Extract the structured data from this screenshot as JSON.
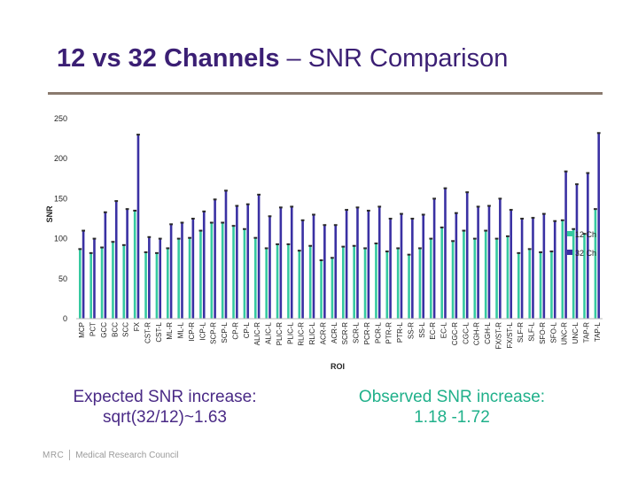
{
  "slide": {
    "title_bold": "12 vs 32 Channels",
    "title_rest": " – SNR Comparison",
    "note_expected_line1": "Expected SNR increase:",
    "note_expected_line2": "sqrt(32/12)~1.63",
    "note_observed_line1": "Observed SNR increase:",
    "note_observed_line2": "1.18 -1.72",
    "footer_mark": "MRC",
    "footer_text": "Medical Research Council"
  },
  "colors": {
    "title": "#3b1f74",
    "series_12ch": "#36c9a0",
    "series_32ch": "#3a31a3",
    "observed_text": "#1fb08a"
  },
  "chart_data": {
    "type": "bar",
    "xlabel": "ROI",
    "ylabel": "SNR",
    "ylim": [
      0,
      250
    ],
    "yticks": [
      0,
      50,
      100,
      150,
      200,
      250
    ],
    "grid": false,
    "legend_position": "right",
    "categories": [
      "MCP",
      "PCT",
      "GCC",
      "BCC",
      "SCC",
      "FX",
      "CST-R",
      "CST-L",
      "ML-R",
      "ML-L",
      "ICP-R",
      "ICP-L",
      "SCP-R",
      "SCP-L",
      "CP-R",
      "CP-L",
      "ALIC-R",
      "ALIC-L",
      "PLIC-R",
      "PLIC-L",
      "RLIC-R",
      "RLIC-L",
      "ACR-R",
      "ACR-L",
      "SCR-R",
      "SCR-L",
      "PCR-R",
      "PCR-L",
      "PTR-R",
      "PTR-L",
      "SS-R",
      "SS-L",
      "EC-R",
      "EC-L",
      "CGC-R",
      "CGC-L",
      "CGH-R",
      "CGH-L",
      "FX/ST-R",
      "FX/ST-L",
      "SLF-R",
      "SLF-L",
      "SFO-R",
      "SFO-L",
      "UNC-R",
      "UNC-L",
      "TAP-R",
      "TAP-L"
    ],
    "series": [
      {
        "name": "12 Ch",
        "values": [
          87,
          82,
          89,
          96,
          92,
          135,
          83,
          82,
          88,
          100,
          101,
          110,
          120,
          120,
          116,
          112,
          101,
          88,
          93,
          93,
          85,
          91,
          73,
          76,
          90,
          91,
          88,
          94,
          84,
          88,
          80,
          88,
          100,
          114,
          97,
          110,
          100,
          110,
          100,
          103,
          82,
          87,
          83,
          84,
          123,
          112,
          106,
          137
        ]
      },
      {
        "name": "32 Ch",
        "values": [
          110,
          100,
          133,
          147,
          137,
          230,
          102,
          100,
          118,
          120,
          125,
          134,
          149,
          160,
          141,
          143,
          155,
          128,
          139,
          140,
          123,
          130,
          117,
          117,
          136,
          139,
          135,
          140,
          125,
          131,
          125,
          130,
          150,
          163,
          132,
          158,
          140,
          141,
          150,
          136,
          125,
          126,
          131,
          122,
          184,
          168,
          182,
          232
        ]
      }
    ]
  }
}
